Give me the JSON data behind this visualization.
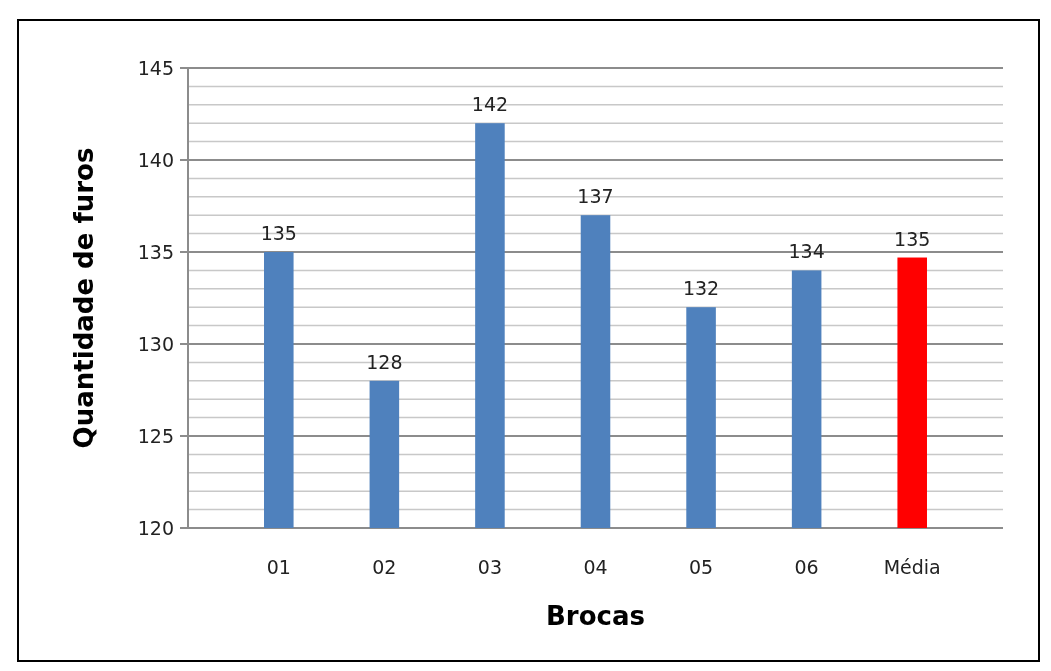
{
  "chart_data": {
    "type": "bar",
    "xlabel": "Brocas",
    "ylabel": "Quantidade de furos",
    "categories": [
      "01",
      "02",
      "03",
      "04",
      "05",
      "06",
      "Média"
    ],
    "values": [
      135,
      128,
      142,
      137,
      132,
      134,
      134.7
    ],
    "value_labels": [
      "135",
      "128",
      "142",
      "137",
      "132",
      "134",
      "135"
    ],
    "colors": [
      "#4f81bd",
      "#4f81bd",
      "#4f81bd",
      "#4f81bd",
      "#4f81bd",
      "#4f81bd",
      "#ff0000"
    ],
    "ylim": [
      120,
      145
    ],
    "yticks": [
      120,
      {
        "value": 121,
        "label": null
      },
      {
        "value": 122,
        "label": null
      },
      {
        "value": 123,
        "label": null
      },
      {
        "value": 124,
        "label": null
      },
      125,
      {
        "value": 126,
        "label": null
      },
      {
        "value": 127,
        "label": null
      },
      {
        "value": 128,
        "label": null
      },
      {
        "value": 129,
        "label": null
      },
      130,
      {
        "value": 131,
        "label": null
      },
      {
        "value": 132,
        "label": null
      },
      {
        "value": 133,
        "label": null
      },
      {
        "value": 134,
        "label": null
      },
      135,
      {
        "value": 136,
        "label": null
      },
      {
        "value": 137,
        "label": null
      },
      {
        "value": 138,
        "label": null
      },
      {
        "value": 139,
        "label": null
      },
      140,
      {
        "value": 141,
        "label": null
      },
      {
        "value": 142,
        "label": null
      },
      {
        "value": 143,
        "label": null
      },
      {
        "value": 144,
        "label": null
      },
      145
    ],
    "grid": "y"
  }
}
